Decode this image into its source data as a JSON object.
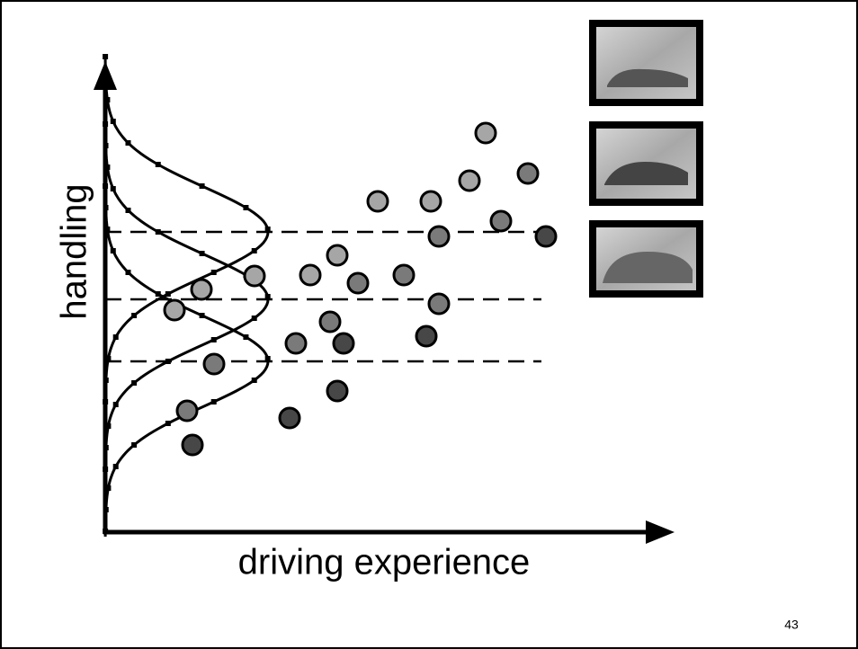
{
  "diagram": {
    "y_axis_label": "handling",
    "x_axis_label": "driving experience"
  },
  "footer": {
    "page_number": "43"
  }
}
